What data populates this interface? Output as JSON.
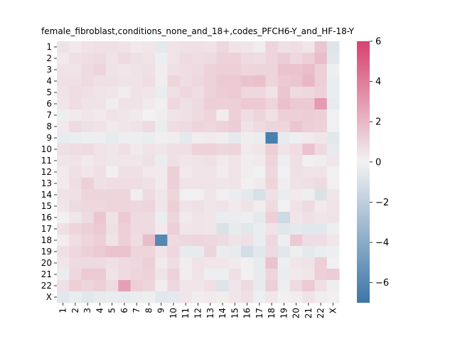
{
  "chart_data": {
    "type": "heatmap",
    "title": "female_fibroblast,conditions_none_and_18+,codes_PFCH6-Y_and_HF-18-Y",
    "xlabel": "",
    "ylabel": "",
    "x_categories": [
      "1",
      "2",
      "3",
      "4",
      "5",
      "6",
      "7",
      "8",
      "9",
      "10",
      "11",
      "12",
      "13",
      "14",
      "15",
      "16",
      "17",
      "18",
      "19",
      "20",
      "21",
      "22",
      "X"
    ],
    "y_categories": [
      "1",
      "2",
      "3",
      "4",
      "5",
      "6",
      "7",
      "8",
      "9",
      "10",
      "11",
      "12",
      "13",
      "14",
      "15",
      "16",
      "17",
      "18",
      "19",
      "20",
      "21",
      "22",
      "X"
    ],
    "colorbar": {
      "min": -7,
      "max": 6,
      "ticks": [
        6,
        4,
        2,
        0,
        -2,
        -4,
        -6
      ],
      "tick_labels": [
        "6",
        "4",
        "2",
        "0",
        "−2",
        "−4",
        "−6"
      ],
      "low_color": "#3b76a8",
      "mid_color": "#f2f2f2",
      "high_color": "#d7416f"
    },
    "values": [
      [
        0.5,
        0.3,
        0.5,
        0.6,
        0.6,
        0.5,
        0.3,
        0.4,
        -0.5,
        0.5,
        0.6,
        0.6,
        0.5,
        0.9,
        0.5,
        0.4,
        0.2,
        1.0,
        0.6,
        0.7,
        0.4,
        1.5,
        -0.8
      ],
      [
        0.3,
        0.6,
        0.7,
        0.8,
        0.5,
        0.8,
        0.6,
        0.5,
        -0.2,
        0.5,
        0.8,
        0.7,
        0.8,
        1.1,
        1.1,
        0.8,
        0.7,
        1.0,
        1.3,
        0.9,
        1.2,
        1.8,
        -0.6
      ],
      [
        0.5,
        0.5,
        0.8,
        1.0,
        0.5,
        0.4,
        0.5,
        0.6,
        0.2,
        0.6,
        0.7,
        0.8,
        1.1,
        1.2,
        1.2,
        1.0,
        1.0,
        1.0,
        1.6,
        1.6,
        1.8,
        1.2,
        -0.2
      ],
      [
        0.6,
        0.6,
        0.8,
        0.6,
        0.6,
        0.5,
        0.5,
        0.7,
        0.2,
        1.0,
        0.7,
        0.9,
        1.1,
        1.4,
        1.4,
        1.6,
        1.7,
        1.0,
        1.4,
        1.5,
        2.0,
        1.2,
        -0.3
      ],
      [
        0.5,
        0.7,
        0.6,
        0.5,
        0.4,
        0.2,
        0.5,
        0.4,
        -0.3,
        0.6,
        0.9,
        0.7,
        1.1,
        1.3,
        1.4,
        0.9,
        0.9,
        0.5,
        1.5,
        0.8,
        0.9,
        1.1,
        -0.3
      ],
      [
        0.4,
        0.7,
        0.5,
        0.5,
        0.2,
        0.5,
        0.5,
        0.3,
        0.1,
        0.9,
        0.6,
        0.8,
        1.2,
        1.2,
        1.2,
        1.4,
        1.4,
        1.0,
        1.7,
        1.4,
        1.4,
        3.0,
        -0.4
      ],
      [
        -0.2,
        0.3,
        0.4,
        0.3,
        0.5,
        0.4,
        0.3,
        0.0,
        0.2,
        0.5,
        0.6,
        0.8,
        1.0,
        0.2,
        1.2,
        0.7,
        1.0,
        0.6,
        1.2,
        1.2,
        1.3,
        1.2,
        -0.1
      ],
      [
        0.3,
        0.8,
        0.6,
        0.5,
        0.3,
        0.4,
        0.5,
        0.8,
        -0.3,
        0.7,
        0.8,
        1.0,
        0.9,
        1.1,
        1.3,
        0.5,
        0.8,
        1.0,
        1.0,
        1.5,
        1.2,
        1.1,
        -0.1
      ],
      [
        -0.4,
        -0.3,
        -0.2,
        -0.2,
        -0.4,
        -0.2,
        -0.2,
        -0.3,
        0.1,
        0.2,
        -0.5,
        0.2,
        0.3,
        0.2,
        -0.5,
        0.2,
        -0.3,
        -6.5,
        -0.4,
        -0.2,
        0.3,
        0.4,
        -0.6
      ],
      [
        0.6,
        0.7,
        0.8,
        0.5,
        0.4,
        0.6,
        0.3,
        0.5,
        0.4,
        0.6,
        0.6,
        1.1,
        1.1,
        0.9,
        1.0,
        0.3,
        0.4,
        1.2,
        0.5,
        0.7,
        1.6,
        0.8,
        -0.4
      ],
      [
        0.4,
        0.5,
        0.3,
        0.5,
        0.4,
        0.4,
        0.4,
        0.6,
        -0.3,
        0.6,
        0.4,
        0.5,
        0.6,
        0.3,
        0.5,
        0.2,
        0.3,
        1.0,
        -0.2,
        0.6,
        0.1,
        0.2,
        0.4
      ],
      [
        0.3,
        0.6,
        0.4,
        0.6,
        0.1,
        0.6,
        0.6,
        0.3,
        0.3,
        1.2,
        0.3,
        0.5,
        0.5,
        0.2,
        0.5,
        0.2,
        -0.1,
        0.9,
        -0.1,
        0.6,
        0.5,
        0.5,
        0.1
      ],
      [
        0.3,
        0.7,
        1.2,
        0.6,
        0.7,
        0.7,
        0.7,
        0.6,
        0.3,
        1.2,
        0.5,
        0.5,
        0.5,
        0.4,
        0.5,
        0.1,
        0.3,
        1.0,
        0.2,
        0.5,
        0.6,
        0.8,
        0.1
      ],
      [
        0.5,
        0.6,
        1.0,
        1.0,
        1.0,
        1.0,
        0.2,
        0.8,
        0.4,
        1.0,
        -0.1,
        0.1,
        0.4,
        0.1,
        -0.3,
        -0.5,
        -1.0,
        0.6,
        -0.3,
        0.3,
        -0.2,
        -0.9,
        0.4
      ],
      [
        0.4,
        0.8,
        0.9,
        0.9,
        1.0,
        1.0,
        0.9,
        1.0,
        0.4,
        1.2,
        0.5,
        0.6,
        0.4,
        0.5,
        0.3,
        0.5,
        0.2,
        0.8,
        0.1,
        0.5,
        0.8,
        0.3,
        0.5
      ],
      [
        0.1,
        0.4,
        0.8,
        1.5,
        0.5,
        1.4,
        0.8,
        0.8,
        -0.3,
        1.0,
        0.3,
        0.5,
        0.4,
        -0.3,
        -0.3,
        -0.2,
        -0.5,
        1.2,
        -1.4,
        0.4,
        0.6,
        0.4,
        0.5
      ],
      [
        0.6,
        1.0,
        1.2,
        1.4,
        0.6,
        1.2,
        0.8,
        0.8,
        0.3,
        1.2,
        0.4,
        0.5,
        0.4,
        -0.9,
        -0.4,
        -0.6,
        -0.3,
        0.5,
        -0.7,
        -0.5,
        -0.6,
        -0.6,
        -0.2
      ],
      [
        0.2,
        0.7,
        1.0,
        1.2,
        0.5,
        1.2,
        0.7,
        1.8,
        -6.0,
        0.8,
        0.9,
        1.0,
        0.9,
        0.8,
        0.5,
        0.6,
        -0.3,
        0.9,
        -0.2,
        1.4,
        0.7,
        0.7,
        0.4
      ],
      [
        0.6,
        0.9,
        1.2,
        1.4,
        1.6,
        1.6,
        1.0,
        1.0,
        0.5,
        0.9,
        -0.4,
        -0.4,
        1.0,
        -0.3,
        -0.4,
        -1.2,
        -0.6,
        0.8,
        -0.6,
        -0.2,
        -0.5,
        -0.3,
        -0.2
      ],
      [
        0.4,
        0.8,
        0.8,
        0.8,
        0.6,
        0.8,
        0.9,
        1.2,
        0.3,
        0.7,
        0.2,
        0.5,
        0.4,
        0.4,
        0.3,
        0.1,
        -0.4,
        1.6,
        -0.2,
        0.4,
        0.5,
        1.2,
        -0.1
      ],
      [
        -0.3,
        0.9,
        1.4,
        1.4,
        0.5,
        0.8,
        1.0,
        1.1,
        0.5,
        1.1,
        0.2,
        0.5,
        -0.2,
        -0.2,
        0.6,
        0.1,
        -0.4,
        1.0,
        -0.3,
        0.3,
        0.4,
        1.2,
        1.3
      ],
      [
        0.6,
        1.2,
        1.0,
        1.2,
        0.8,
        2.8,
        1.2,
        1.0,
        0.2,
        0.9,
        0.4,
        0.4,
        0.6,
        -0.8,
        0.4,
        0.8,
        -0.4,
        1.2,
        -0.2,
        0.8,
        1.4,
        0.6,
        -0.2
      ],
      [
        -0.6,
        -0.3,
        -0.6,
        -0.4,
        -0.3,
        -0.4,
        -0.3,
        -0.2,
        -0.6,
        -0.5,
        0.4,
        0.2,
        0.3,
        0.2,
        0.4,
        0.6,
        -0.2,
        0.4,
        0.1,
        0.2,
        0.5,
        0.2,
        0.1
      ]
    ]
  }
}
